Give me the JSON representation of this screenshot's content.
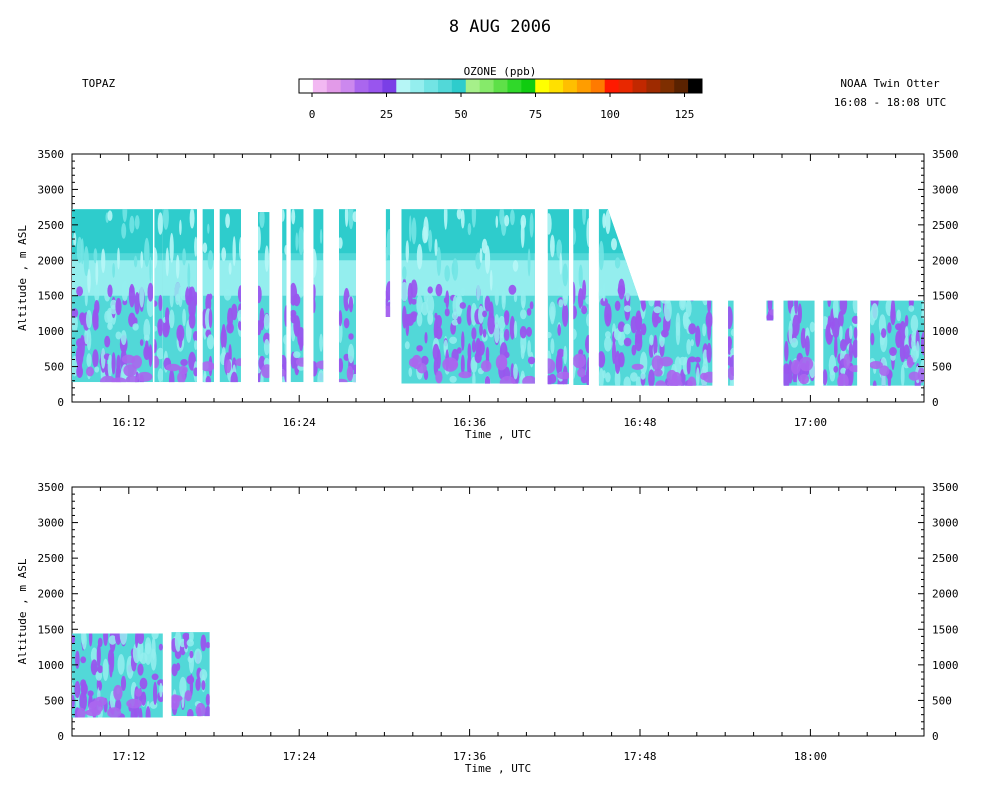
{
  "title": "8 AUG 2006",
  "left_label": "TOPAZ",
  "right_label_line1": "NOAA Twin Otter",
  "right_label_line2": "16:08 - 18:08 UTC",
  "colorbar": {
    "title": "OZONE (ppb)",
    "min": 0,
    "max": 130,
    "tick_labels": [
      "0",
      "25",
      "50",
      "75",
      "100",
      "125"
    ],
    "tick_values": [
      0,
      25,
      50,
      75,
      100,
      125
    ],
    "colors": [
      "#ffffff",
      "#f2b8f2",
      "#e29ae8",
      "#cc88ee",
      "#aa66ee",
      "#9955ee",
      "#7a3fe6",
      "#b6f6f6",
      "#94eeee",
      "#72e4e4",
      "#52d8d8",
      "#2ecccc",
      "#a6f08a",
      "#86ea6a",
      "#5ee048",
      "#30d82a",
      "#10cc10",
      "#ffff00",
      "#ffe000",
      "#ffbf00",
      "#ff9d00",
      "#ff7a00",
      "#ff1a00",
      "#e82800",
      "#c22800",
      "#9e2a00",
      "#7e2e00",
      "#5a2200",
      "#000000"
    ]
  },
  "chart_data": [
    {
      "type": "heatmap",
      "panel": "top",
      "xlabel": "Time , UTC",
      "ylabel": "Altitude , m ASL",
      "ylim": [
        0,
        3500
      ],
      "y_ticks": [
        "0",
        "500",
        "1000",
        "1500",
        "2000",
        "2500",
        "3000",
        "3500"
      ],
      "y_tick_values": [
        0,
        500,
        1000,
        1500,
        2000,
        2500,
        3000,
        3500
      ],
      "xlim": [
        "16:08",
        "17:08"
      ],
      "x_ticks": [
        "16:12",
        "16:24",
        "16:36",
        "16:48",
        "17:00"
      ],
      "x_tick_values": [
        4,
        16,
        28,
        40,
        52
      ],
      "variable": "OZONE (ppb)",
      "segments": [
        {
          "start": "16:08.0",
          "end": "16:13.7",
          "alt_bottom": 280,
          "alt_top": 2720
        },
        {
          "start": "16:13.8",
          "end": "16:14.4",
          "alt_bottom": 280,
          "alt_top": 2720
        },
        {
          "start": "16:14.4",
          "end": "16:16.8",
          "alt_bottom": 280,
          "alt_top": 2720
        },
        {
          "start": "16:17.2",
          "end": "16:18.0",
          "alt_bottom": 280,
          "alt_top": 2720
        },
        {
          "start": "16:18.4",
          "end": "16:19.9",
          "alt_bottom": 280,
          "alt_top": 2720
        },
        {
          "start": "16:21.1",
          "end": "16:21.9",
          "alt_bottom": 280,
          "alt_top": 2680
        },
        {
          "start": "16:22.8",
          "end": "16:23.1",
          "alt_bottom": 280,
          "alt_top": 2720
        },
        {
          "start": "16:23.4",
          "end": "16:24.3",
          "alt_bottom": 280,
          "alt_top": 2720
        },
        {
          "start": "16:25.0",
          "end": "16:25.7",
          "alt_bottom": 280,
          "alt_top": 2720
        },
        {
          "start": "16:26.8",
          "end": "16:28.0",
          "alt_bottom": 280,
          "alt_top": 2720
        },
        {
          "start": "16:30.1",
          "end": "16:30.4",
          "alt_bottom": 1200,
          "alt_top": 2720
        },
        {
          "start": "16:31.2",
          "end": "16:40.6",
          "alt_bottom": 260,
          "alt_top": 2720
        },
        {
          "start": "16:41.5",
          "end": "16:43.0",
          "alt_bottom": 250,
          "alt_top": 2720
        },
        {
          "start": "16:43.3",
          "end": "16:44.4",
          "alt_bottom": 240,
          "alt_top": 2720
        },
        {
          "start": "16:45.1",
          "end": "16:53.1",
          "alt_bottom": 230,
          "alt_top": 2720,
          "slant_top_to": 1430
        },
        {
          "start": "16:54.2",
          "end": "16:54.6",
          "alt_bottom": 230,
          "alt_top": 1430
        },
        {
          "start": "16:56.9",
          "end": "16:57.4",
          "alt_bottom": 1150,
          "alt_top": 1430
        },
        {
          "start": "16:58.1",
          "end": "17:00.3",
          "alt_bottom": 230,
          "alt_top": 1430
        },
        {
          "start": "17:00.9",
          "end": "17:03.3",
          "alt_bottom": 230,
          "alt_top": 1430
        },
        {
          "start": "17:04.2",
          "end": "17:08.0",
          "alt_bottom": 230,
          "alt_top": 1430
        }
      ]
    },
    {
      "type": "heatmap",
      "panel": "bottom",
      "xlabel": "Time , UTC",
      "ylabel": "Altitude , m ASL",
      "ylim": [
        0,
        3500
      ],
      "y_ticks": [
        "0",
        "500",
        "1000",
        "1500",
        "2000",
        "2500",
        "3000",
        "3500"
      ],
      "y_tick_values": [
        0,
        500,
        1000,
        1500,
        2000,
        2500,
        3000,
        3500
      ],
      "xlim": [
        "17:08",
        "18:08"
      ],
      "x_ticks": [
        "17:12",
        "17:24",
        "17:36",
        "17:48",
        "18:00"
      ],
      "x_tick_values": [
        4,
        16,
        28,
        40,
        52
      ],
      "variable": "OZONE (ppb)",
      "segments": [
        {
          "start": "17:08.0",
          "end": "17:14.4",
          "alt_bottom": 260,
          "alt_top": 1440
        },
        {
          "start": "17:15.0",
          "end": "17:17.7",
          "alt_bottom": 280,
          "alt_top": 1460
        }
      ]
    }
  ]
}
